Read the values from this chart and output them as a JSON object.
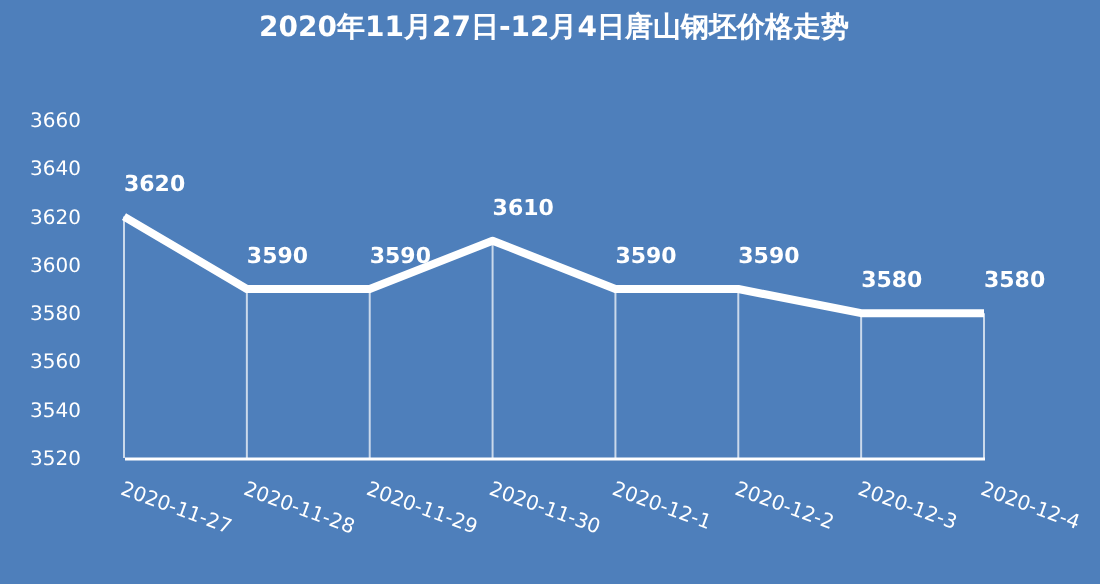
{
  "chart_data": {
    "type": "line",
    "title": "2020年11月27日-12月4日唐山钢坯价格走势",
    "categories": [
      "2020-11-27",
      "2020-11-28",
      "2020-11-29",
      "2020-11-30",
      "2020-12-1",
      "2020-12-2",
      "2020-12-3",
      "2020-12-4"
    ],
    "series": [
      {
        "color": "#ffffff",
        "values": [
          3620,
          3590,
          3590,
          3610,
          3590,
          3590,
          3580,
          3580
        ]
      }
    ],
    "ylim": [
      3520,
      3660
    ],
    "yticks": [
      3520,
      3540,
      3560,
      3580,
      3600,
      3620,
      3640,
      3660
    ],
    "data_labels": true,
    "grid": false,
    "legend": false,
    "marker": "none",
    "line_style": "solid"
  }
}
